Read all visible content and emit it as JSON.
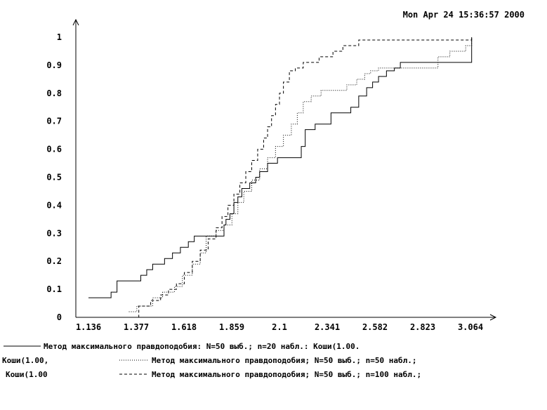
{
  "timestamp": "Mon Apr 24 15:36:57 2000",
  "chart_data": {
    "type": "line",
    "title": "",
    "xlabel": "",
    "ylabel": "",
    "x_ticks": [
      "1.136",
      "1.377",
      "1.618",
      "1.859",
      "2.1",
      "2.341",
      "2.582",
      "2.823",
      "3.064"
    ],
    "y_ticks": [
      "0",
      "0.1",
      "0.2",
      "0.3",
      "0.4",
      "0.5",
      "0.6",
      "0.7",
      "0.8",
      "0.9",
      "1"
    ],
    "xlim": [
      1.136,
      3.064
    ],
    "ylim": [
      0,
      1
    ],
    "grid": false,
    "legend_position": "bottom",
    "series": [
      {
        "style": "solid",
        "legend_prefix": "",
        "legend_text": "Метод максимального правдоподобия: N=50 выб.; n=20 набл.: Коши(1.00.",
        "x": [
          1.136,
          1.25,
          1.28,
          1.4,
          1.43,
          1.46,
          1.52,
          1.56,
          1.6,
          1.64,
          1.67,
          1.75,
          1.82,
          1.83,
          1.85,
          1.87,
          1.89,
          1.91,
          1.95,
          1.98,
          2.0,
          2.04,
          2.09,
          2.13,
          2.21,
          2.23,
          2.28,
          2.36,
          2.42,
          2.46,
          2.5,
          2.54,
          2.57,
          2.6,
          2.64,
          2.68,
          2.71,
          2.95,
          3.07
        ],
        "y": [
          0.07,
          0.09,
          0.13,
          0.15,
          0.17,
          0.19,
          0.21,
          0.23,
          0.25,
          0.27,
          0.29,
          0.29,
          0.33,
          0.35,
          0.37,
          0.41,
          0.43,
          0.46,
          0.48,
          0.5,
          0.52,
          0.55,
          0.57,
          0.57,
          0.61,
          0.67,
          0.69,
          0.73,
          0.73,
          0.75,
          0.79,
          0.82,
          0.84,
          0.86,
          0.88,
          0.89,
          0.91,
          0.91,
          1.0
        ]
      },
      {
        "style": "dotted",
        "legend_prefix": "Коши(1.00,",
        "legend_text": "Метод максимального правдоподобия; N=50 выб.; n=50 набл.;",
        "x": [
          1.34,
          1.38,
          1.46,
          1.51,
          1.57,
          1.61,
          1.66,
          1.7,
          1.73,
          1.78,
          1.82,
          1.86,
          1.89,
          1.92,
          1.96,
          2.0,
          2.04,
          2.08,
          2.12,
          2.16,
          2.19,
          2.22,
          2.26,
          2.31,
          2.38,
          2.44,
          2.49,
          2.53,
          2.56,
          2.6,
          2.65,
          2.73,
          2.81,
          2.9,
          2.96,
          3.04,
          3.07
        ],
        "y": [
          0.02,
          0.04,
          0.07,
          0.09,
          0.11,
          0.15,
          0.19,
          0.23,
          0.29,
          0.31,
          0.33,
          0.37,
          0.41,
          0.45,
          0.49,
          0.53,
          0.57,
          0.61,
          0.65,
          0.69,
          0.73,
          0.77,
          0.79,
          0.81,
          0.81,
          0.83,
          0.85,
          0.87,
          0.88,
          0.89,
          0.89,
          0.89,
          0.89,
          0.93,
          0.95,
          0.97,
          1.0
        ]
      },
      {
        "style": "dashed",
        "legend_prefix": "Коши(1.00",
        "legend_text": "Метод максимального правдоподобия; N=50 выб.; n=100 набл.;",
        "x": [
          1.19,
          1.39,
          1.45,
          1.5,
          1.54,
          1.58,
          1.62,
          1.66,
          1.7,
          1.74,
          1.78,
          1.81,
          1.84,
          1.87,
          1.9,
          1.93,
          1.96,
          1.99,
          2.02,
          2.04,
          2.06,
          2.08,
          2.1,
          2.12,
          2.15,
          2.18,
          2.22,
          2.3,
          2.37,
          2.42,
          2.5,
          2.58,
          2.68,
          3.07
        ],
        "y": [
          0.0,
          0.04,
          0.06,
          0.08,
          0.1,
          0.12,
          0.16,
          0.2,
          0.24,
          0.28,
          0.32,
          0.36,
          0.4,
          0.44,
          0.48,
          0.52,
          0.56,
          0.6,
          0.64,
          0.68,
          0.72,
          0.76,
          0.8,
          0.84,
          0.88,
          0.89,
          0.91,
          0.93,
          0.95,
          0.97,
          0.99,
          0.99,
          0.99,
          1.0
        ]
      }
    ]
  }
}
